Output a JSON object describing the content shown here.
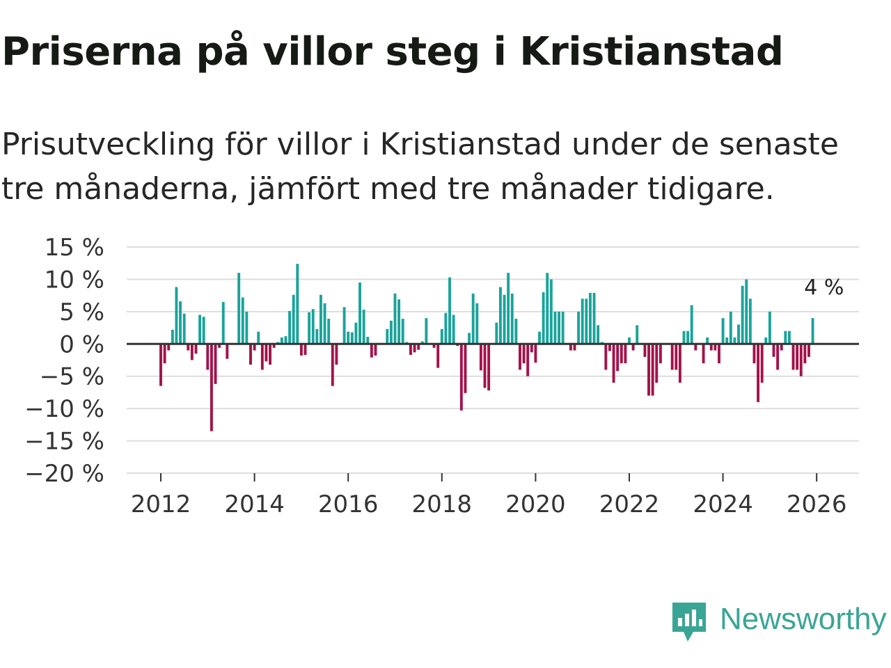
{
  "title": "Priserna på villor steg i Kristianstad",
  "subtitle": "Prisutveckling för villor i Kristianstad under de senaste tre månaderna, jämfört med tre månader tidigare.",
  "brand": "Newsworthy",
  "colors": {
    "positive": "#1aa39a",
    "negative": "#a3124a",
    "grid": "#dddddd",
    "zero": "#333333"
  },
  "chart_data": {
    "type": "bar",
    "title": "Priserna på villor steg i Kristianstad",
    "subtitle": "Prisutveckling för villor i Kristianstad under de senaste tre månaderna, jämfört med tre månader tidigare.",
    "xlabel": "",
    "ylabel": "",
    "unit": "%",
    "ylim": [
      -20,
      15
    ],
    "yticks": [
      15,
      10,
      5,
      0,
      -5,
      -10,
      -15,
      -20
    ],
    "ytick_labels": [
      "15 %",
      "10 %",
      "5 %",
      "0 %",
      "−5 %",
      "−10 %",
      "−15 %",
      "−20 %"
    ],
    "xticks": [
      2012,
      2014,
      2016,
      2018,
      2020,
      2022,
      2024,
      2026
    ],
    "xtick_labels": [
      "2012",
      "2014",
      "2016",
      "2018",
      "2020",
      "2022",
      "2024",
      "2026"
    ],
    "x_start": "2012-01",
    "frequency": "monthly",
    "values": [
      -6.5,
      -3,
      -1,
      2.2,
      8.8,
      6.6,
      4.7,
      -1,
      -2.5,
      -1.5,
      4.5,
      4.2,
      -4,
      -13.5,
      -6.2,
      -0.6,
      6.5,
      -2.3,
      0,
      0,
      11,
      7.2,
      5,
      -3.2,
      -1,
      1.9,
      -4,
      -2.7,
      -3.2,
      -0.6,
      0.3,
      1,
      1.2,
      5.1,
      7.6,
      12.4,
      -1.8,
      -1.7,
      4.9,
      5.4,
      2.3,
      7.6,
      6.3,
      3.9,
      -6.5,
      -3.2,
      0,
      5.7,
      1.9,
      1.8,
      3.3,
      9.5,
      5.3,
      1.1,
      -2.1,
      -1.8,
      0,
      0,
      2.3,
      3.6,
      7.8,
      6.9,
      3.9,
      0.3,
      -1.7,
      -1.3,
      -0.9,
      0.4,
      4,
      0,
      -0.6,
      -3.7,
      2.3,
      4.8,
      10.3,
      4.5,
      -0.3,
      -10.3,
      -7.6,
      1.7,
      7.8,
      6.3,
      -4.1,
      -6.8,
      -7.2,
      0,
      3.3,
      8.8,
      7.6,
      11,
      7.8,
      3.9,
      -4,
      -3,
      -5,
      -1.3,
      -2.9,
      1.9,
      8,
      11,
      10,
      5,
      5,
      5,
      0,
      -1,
      -1,
      5,
      7,
      7,
      7.9,
      7.9,
      2.9,
      0.3,
      -4,
      -1.1,
      -6,
      -4.2,
      -3,
      -3,
      1,
      -1,
      2.9,
      0,
      -2,
      -8,
      -8,
      -6,
      -3,
      0,
      0,
      -4,
      -4,
      -6,
      2,
      2,
      6,
      -1,
      0,
      -3,
      1,
      -1,
      -1,
      -3,
      4,
      1,
      5,
      1,
      3,
      9,
      10,
      7,
      -3,
      -9,
      -6,
      1,
      5,
      -2,
      -4,
      -1,
      2,
      2,
      -4,
      -4,
      -5,
      -3,
      -2,
      4
    ],
    "annotations": [
      {
        "text": "4 %",
        "x": "2026-03",
        "y": 4
      }
    ]
  }
}
